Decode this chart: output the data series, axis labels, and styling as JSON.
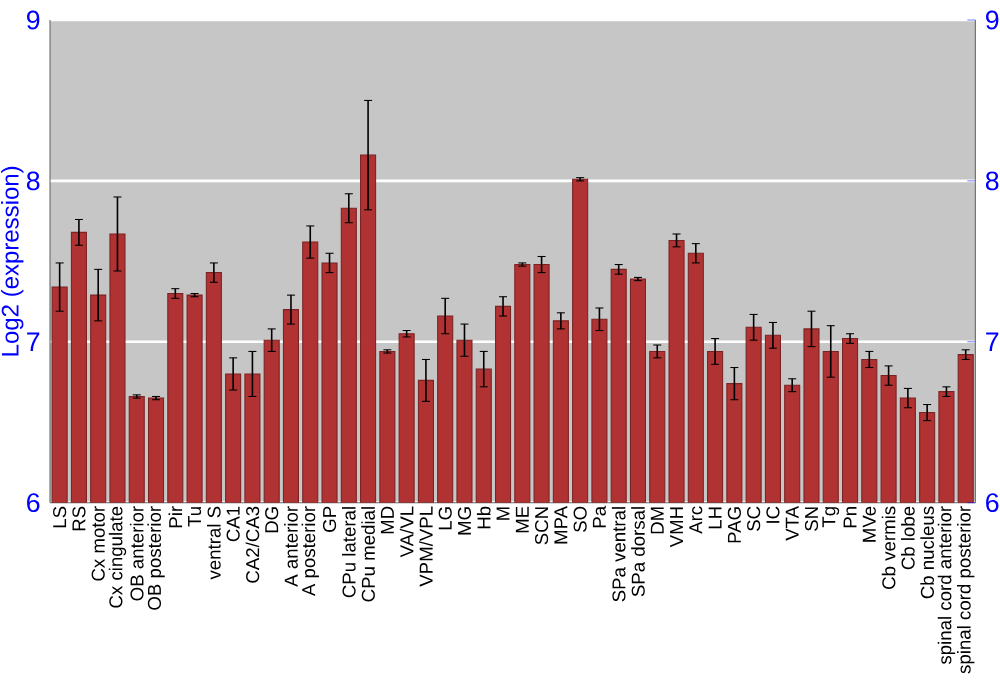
{
  "chart_data": {
    "type": "bar",
    "ylabel": "Log2 (expression)",
    "categories": [
      "LS",
      "RS",
      "Cx motor",
      "Cx cingulate",
      "OB anterior",
      "OB posterior",
      "Pir",
      "Tu",
      "ventral S",
      "CA1",
      "CA2/CA3",
      "DG",
      "A anterior",
      "A posterior",
      "GP",
      "CPu lateral",
      "CPu medial",
      "MD",
      "VA/VL",
      "VPM/VPL",
      "LG",
      "MG",
      "Hb",
      "M",
      "ME",
      "SCN",
      "MPA",
      "SO",
      "Pa",
      "SPa ventral",
      "SPa dorsal",
      "DM",
      "VMH",
      "Arc",
      "LH",
      "PAG",
      "SC",
      "IC",
      "VTA",
      "SN",
      "Tg",
      "Pn",
      "MVe",
      "Cb vermis",
      "Cb lobe",
      "Cb nucleus",
      "spinal cord anterior",
      "spinal cord posterior"
    ],
    "values": [
      7.34,
      7.68,
      7.29,
      7.67,
      6.66,
      6.65,
      7.3,
      7.29,
      7.43,
      6.8,
      6.8,
      7.01,
      7.2,
      7.62,
      7.49,
      7.83,
      8.16,
      6.94,
      7.05,
      6.76,
      7.16,
      7.01,
      6.83,
      7.22,
      7.48,
      7.48,
      7.13,
      8.01,
      7.14,
      7.45,
      7.39,
      6.94,
      7.63,
      7.55,
      6.94,
      6.74,
      7.09,
      7.04,
      6.73,
      7.08,
      6.94,
      7.02,
      6.89,
      6.79,
      6.65,
      6.56,
      6.69,
      6.92
    ],
    "errors": [
      0.15,
      0.08,
      0.16,
      0.23,
      0.01,
      0.01,
      0.03,
      0.01,
      0.06,
      0.1,
      0.14,
      0.07,
      0.09,
      0.1,
      0.06,
      0.09,
      0.34,
      0.01,
      0.02,
      0.13,
      0.11,
      0.1,
      0.11,
      0.06,
      0.01,
      0.05,
      0.05,
      0.01,
      0.07,
      0.03,
      0.01,
      0.04,
      0.04,
      0.06,
      0.08,
      0.1,
      0.08,
      0.08,
      0.04,
      0.11,
      0.16,
      0.03,
      0.05,
      0.06,
      0.06,
      0.05,
      0.03,
      0.03
    ],
    "color": "#b03232",
    "ylim": [
      6,
      9
    ],
    "yticks": [
      6,
      7,
      8,
      9
    ],
    "y2lim": [
      6,
      9
    ],
    "y2ticks": [
      6,
      7,
      8,
      9
    ],
    "grid": "y"
  }
}
